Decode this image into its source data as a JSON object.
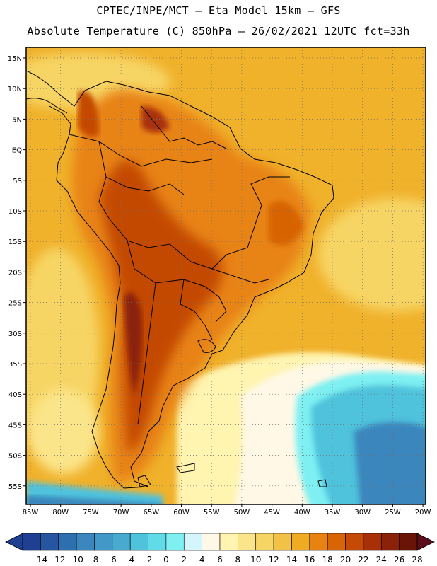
{
  "header": {
    "line1": "CPTEC/INPE/MCT –  Eta Model 15km – GFS",
    "line2": "Absolute Temperature (C) 850hPa – 26/02/2021 12UTC fct=33h"
  },
  "map": {
    "lat_labels": [
      "15N",
      "10N",
      "5N",
      "EQ",
      "5S",
      "10S",
      "15S",
      "20S",
      "25S",
      "30S",
      "35S",
      "40S",
      "45S",
      "50S",
      "55S"
    ],
    "lon_labels": [
      "85W",
      "80W",
      "75W",
      "70W",
      "65W",
      "60W",
      "55W",
      "50W",
      "45W",
      "40W",
      "35W",
      "30W",
      "25W",
      "20W"
    ]
  },
  "colorbar": {
    "ticks": [
      "-14",
      "-12",
      "-10",
      "-8",
      "-6",
      "-4",
      "-2",
      "0",
      "2",
      "4",
      "6",
      "8",
      "10",
      "12",
      "14",
      "16",
      "18",
      "20",
      "22",
      "24",
      "26",
      "28"
    ],
    "colors": [
      "#1f3f93",
      "#25569f",
      "#2e6fb0",
      "#3a86bd",
      "#4298c6",
      "#49aacf",
      "#4fc2dc",
      "#62dbe8",
      "#7ef0f2",
      "#d4f5fb",
      "#fff8e6",
      "#fff4b0",
      "#fbe58a",
      "#f7d565",
      "#f2c246",
      "#efac23",
      "#e88312",
      "#d76405",
      "#c44a06",
      "#a83007",
      "#8a2108",
      "#6a1408"
    ]
  }
}
